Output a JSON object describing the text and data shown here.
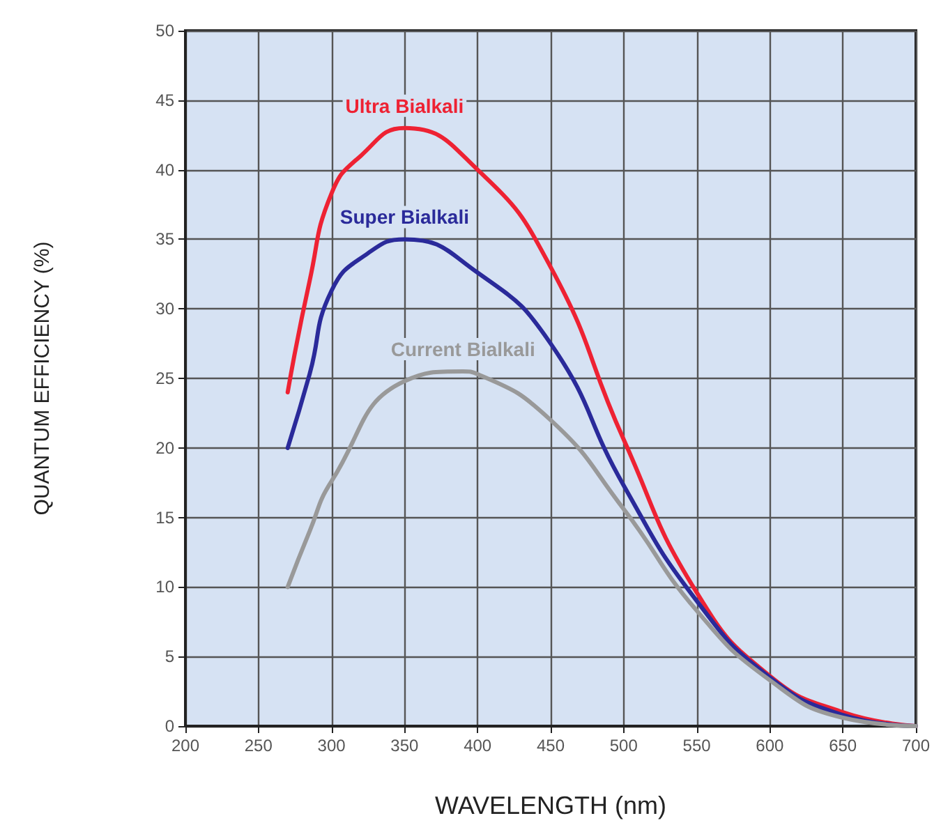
{
  "chart_data": {
    "type": "line",
    "xlabel": "WAVELENGTH (nm)",
    "ylabel": "QUANTUM EFFICIENCY (%)",
    "xlim": [
      200,
      700
    ],
    "xticks": [
      200,
      250,
      300,
      350,
      400,
      450,
      500,
      550,
      600,
      650,
      700
    ],
    "ylim": [
      0,
      50
    ],
    "yticks": [
      0,
      5,
      10,
      15,
      20,
      25,
      30,
      35,
      40,
      45,
      50
    ],
    "grid": true,
    "legend": false,
    "marker": "none",
    "line_style": "solid",
    "series": [
      {
        "name": "Ultra Bialkali",
        "color": "#ee2233",
        "x": [
          270,
          285,
          300,
          320,
          350,
          400,
          450,
          500,
          550,
          600,
          650,
          700
        ],
        "values": [
          24,
          32,
          38.3,
          41,
          43,
          40,
          33,
          20.6,
          9.6,
          3.6,
          1,
          0
        ]
      },
      {
        "name": "Super Bialkali",
        "color": "#2a2a9a",
        "x": [
          270,
          285,
          300,
          325,
          350,
          400,
          450,
          500,
          550,
          600,
          650,
          700
        ],
        "values": [
          20,
          25.3,
          31.3,
          34,
          35,
          32.6,
          27.5,
          17.3,
          9,
          3.5,
          0.8,
          0
        ]
      },
      {
        "name": "Current Bialkali",
        "color": "#999999",
        "x": [
          270,
          285,
          300,
          350,
          390,
          400,
          450,
          500,
          550,
          600,
          650,
          700
        ],
        "values": [
          10,
          14,
          17.6,
          24.8,
          25.5,
          25.3,
          22,
          15.6,
          8.3,
          3.3,
          0.6,
          0
        ]
      }
    ]
  }
}
